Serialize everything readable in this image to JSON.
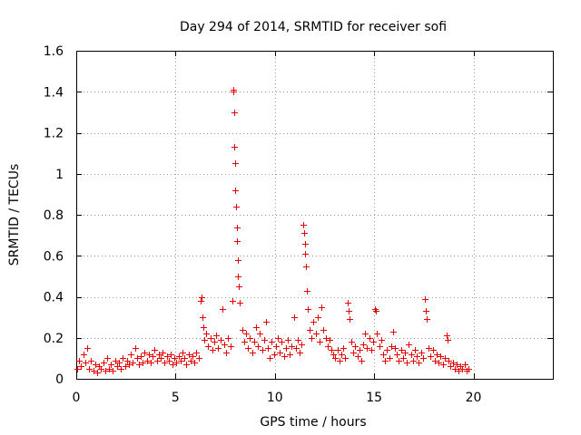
{
  "chart_data": {
    "type": "scatter",
    "title": "Day 294 of 2014, SRMTID for receiver sofi",
    "xlabel": "GPS time / hours",
    "ylabel": "SRMTID / TECUs",
    "xlim": [
      0,
      24
    ],
    "ylim": [
      0,
      1.6
    ],
    "xticks": [
      0,
      5,
      10,
      15,
      20
    ],
    "xtick_labels": [
      "0",
      "5",
      "10",
      "15",
      "20"
    ],
    "yticks": [
      0,
      0.2,
      0.4,
      0.6,
      0.8,
      1,
      1.2,
      1.4,
      1.6
    ],
    "ytick_labels": [
      "0",
      "0.2",
      "0.4",
      "0.6",
      "0.8",
      "1",
      "1.2",
      "1.4",
      "1.6"
    ],
    "grid": true,
    "marker": "+",
    "series": [
      {
        "name": "SRMTID",
        "color": "#e60000",
        "points": [
          [
            0.05,
            0.05
          ],
          [
            0.15,
            0.09
          ],
          [
            0.25,
            0.06
          ],
          [
            0.35,
            0.12
          ],
          [
            0.45,
            0.08
          ],
          [
            0.55,
            0.15
          ],
          [
            0.65,
            0.05
          ],
          [
            0.75,
            0.09
          ],
          [
            0.85,
            0.04
          ],
          [
            0.95,
            0.07
          ],
          [
            1.05,
            0.03
          ],
          [
            1.15,
            0.06
          ],
          [
            1.25,
            0.05
          ],
          [
            1.35,
            0.08
          ],
          [
            1.45,
            0.04
          ],
          [
            1.55,
            0.1
          ],
          [
            1.65,
            0.05
          ],
          [
            1.75,
            0.07
          ],
          [
            1.85,
            0.04
          ],
          [
            1.95,
            0.09
          ],
          [
            2.05,
            0.06
          ],
          [
            2.15,
            0.08
          ],
          [
            2.25,
            0.05
          ],
          [
            2.35,
            0.1
          ],
          [
            2.45,
            0.06
          ],
          [
            2.55,
            0.09
          ],
          [
            2.65,
            0.07
          ],
          [
            2.75,
            0.12
          ],
          [
            2.85,
            0.08
          ],
          [
            2.95,
            0.15
          ],
          [
            3.05,
            0.1
          ],
          [
            3.15,
            0.07
          ],
          [
            3.25,
            0.11
          ],
          [
            3.35,
            0.08
          ],
          [
            3.45,
            0.13
          ],
          [
            3.55,
            0.09
          ],
          [
            3.65,
            0.12
          ],
          [
            3.75,
            0.08
          ],
          [
            3.85,
            0.11
          ],
          [
            3.95,
            0.14
          ],
          [
            4.05,
            0.09
          ],
          [
            4.15,
            0.12
          ],
          [
            4.25,
            0.1
          ],
          [
            4.35,
            0.13
          ],
          [
            4.45,
            0.08
          ],
          [
            4.55,
            0.11
          ],
          [
            4.65,
            0.09
          ],
          [
            4.75,
            0.12
          ],
          [
            4.85,
            0.07
          ],
          [
            4.95,
            0.1
          ],
          [
            5.05,
            0.08
          ],
          [
            5.15,
            0.11
          ],
          [
            5.25,
            0.09
          ],
          [
            5.35,
            0.13
          ],
          [
            5.45,
            0.1
          ],
          [
            5.55,
            0.07
          ],
          [
            5.65,
            0.12
          ],
          [
            5.75,
            0.09
          ],
          [
            5.85,
            0.11
          ],
          [
            5.95,
            0.08
          ],
          [
            6.05,
            0.13
          ],
          [
            6.15,
            0.1
          ],
          [
            6.25,
            0.38
          ],
          [
            6.3,
            0.4
          ],
          [
            6.35,
            0.3
          ],
          [
            6.4,
            0.25
          ],
          [
            6.45,
            0.19
          ],
          [
            6.55,
            0.22
          ],
          [
            6.65,
            0.16
          ],
          [
            6.75,
            0.2
          ],
          [
            6.85,
            0.14
          ],
          [
            6.95,
            0.18
          ],
          [
            7.05,
            0.21
          ],
          [
            7.15,
            0.15
          ],
          [
            7.25,
            0.19
          ],
          [
            7.35,
            0.34
          ],
          [
            7.45,
            0.17
          ],
          [
            7.55,
            0.13
          ],
          [
            7.65,
            0.2
          ],
          [
            7.75,
            0.16
          ],
          [
            7.85,
            0.38
          ],
          [
            7.9,
            1.41
          ],
          [
            7.92,
            1.4
          ],
          [
            7.95,
            1.3
          ],
          [
            7.97,
            1.13
          ],
          [
            8.0,
            1.05
          ],
          [
            8.02,
            0.92
          ],
          [
            8.05,
            0.84
          ],
          [
            8.07,
            0.74
          ],
          [
            8.1,
            0.67
          ],
          [
            8.12,
            0.58
          ],
          [
            8.15,
            0.5
          ],
          [
            8.2,
            0.45
          ],
          [
            8.25,
            0.37
          ],
          [
            8.35,
            0.24
          ],
          [
            8.45,
            0.18
          ],
          [
            8.55,
            0.22
          ],
          [
            8.65,
            0.15
          ],
          [
            8.75,
            0.2
          ],
          [
            8.85,
            0.13
          ],
          [
            8.95,
            0.18
          ],
          [
            9.05,
            0.25
          ],
          [
            9.15,
            0.16
          ],
          [
            9.25,
            0.22
          ],
          [
            9.35,
            0.14
          ],
          [
            9.45,
            0.19
          ],
          [
            9.55,
            0.28
          ],
          [
            9.65,
            0.15
          ],
          [
            9.75,
            0.1
          ],
          [
            9.85,
            0.18
          ],
          [
            9.95,
            0.12
          ],
          [
            10.05,
            0.16
          ],
          [
            10.15,
            0.2
          ],
          [
            10.25,
            0.13
          ],
          [
            10.35,
            0.18
          ],
          [
            10.45,
            0.11
          ],
          [
            10.55,
            0.15
          ],
          [
            10.65,
            0.19
          ],
          [
            10.75,
            0.12
          ],
          [
            10.85,
            0.16
          ],
          [
            10.95,
            0.3
          ],
          [
            11.05,
            0.15
          ],
          [
            11.15,
            0.19
          ],
          [
            11.25,
            0.13
          ],
          [
            11.35,
            0.17
          ],
          [
            11.45,
            0.75
          ],
          [
            11.47,
            0.71
          ],
          [
            11.5,
            0.66
          ],
          [
            11.52,
            0.61
          ],
          [
            11.55,
            0.55
          ],
          [
            11.6,
            0.43
          ],
          [
            11.65,
            0.34
          ],
          [
            11.75,
            0.24
          ],
          [
            11.85,
            0.2
          ],
          [
            11.95,
            0.28
          ],
          [
            12.05,
            0.22
          ],
          [
            12.15,
            0.3
          ],
          [
            12.25,
            0.18
          ],
          [
            12.35,
            0.35
          ],
          [
            12.45,
            0.24
          ],
          [
            12.55,
            0.2
          ],
          [
            12.65,
            0.16
          ],
          [
            12.75,
            0.19
          ],
          [
            12.85,
            0.14
          ],
          [
            12.95,
            0.12
          ],
          [
            13.05,
            0.1
          ],
          [
            13.15,
            0.14
          ],
          [
            13.25,
            0.09
          ],
          [
            13.35,
            0.12
          ],
          [
            13.45,
            0.15
          ],
          [
            13.55,
            0.1
          ],
          [
            13.65,
            0.37
          ],
          [
            13.7,
            0.33
          ],
          [
            13.75,
            0.29
          ],
          [
            13.85,
            0.18
          ],
          [
            13.95,
            0.13
          ],
          [
            14.05,
            0.16
          ],
          [
            14.15,
            0.11
          ],
          [
            14.25,
            0.14
          ],
          [
            14.35,
            0.09
          ],
          [
            14.45,
            0.17
          ],
          [
            14.55,
            0.22
          ],
          [
            14.65,
            0.15
          ],
          [
            14.75,
            0.2
          ],
          [
            14.85,
            0.14
          ],
          [
            14.95,
            0.18
          ],
          [
            15.05,
            0.34
          ],
          [
            15.1,
            0.33
          ],
          [
            15.15,
            0.22
          ],
          [
            15.25,
            0.16
          ],
          [
            15.35,
            0.19
          ],
          [
            15.45,
            0.12
          ],
          [
            15.55,
            0.09
          ],
          [
            15.65,
            0.14
          ],
          [
            15.75,
            0.1
          ],
          [
            15.85,
            0.16
          ],
          [
            15.95,
            0.23
          ],
          [
            16.05,
            0.15
          ],
          [
            16.15,
            0.12
          ],
          [
            16.25,
            0.09
          ],
          [
            16.35,
            0.14
          ],
          [
            16.45,
            0.1
          ],
          [
            16.55,
            0.13
          ],
          [
            16.65,
            0.08
          ],
          [
            16.75,
            0.17
          ],
          [
            16.85,
            0.12
          ],
          [
            16.95,
            0.09
          ],
          [
            17.05,
            0.14
          ],
          [
            17.15,
            0.11
          ],
          [
            17.25,
            0.08
          ],
          [
            17.35,
            0.13
          ],
          [
            17.45,
            0.1
          ],
          [
            17.55,
            0.39
          ],
          [
            17.6,
            0.33
          ],
          [
            17.65,
            0.29
          ],
          [
            17.75,
            0.15
          ],
          [
            17.85,
            0.11
          ],
          [
            17.95,
            0.14
          ],
          [
            18.05,
            0.09
          ],
          [
            18.15,
            0.12
          ],
          [
            18.25,
            0.08
          ],
          [
            18.35,
            0.11
          ],
          [
            18.45,
            0.07
          ],
          [
            18.55,
            0.1
          ],
          [
            18.65,
            0.21
          ],
          [
            18.7,
            0.19
          ],
          [
            18.75,
            0.09
          ],
          [
            18.85,
            0.06
          ],
          [
            18.95,
            0.08
          ],
          [
            19.05,
            0.05
          ],
          [
            19.15,
            0.07
          ],
          [
            19.25,
            0.04
          ],
          [
            19.35,
            0.06
          ],
          [
            19.45,
            0.05
          ],
          [
            19.55,
            0.07
          ],
          [
            19.65,
            0.04
          ],
          [
            19.75,
            0.05
          ]
        ]
      }
    ]
  }
}
